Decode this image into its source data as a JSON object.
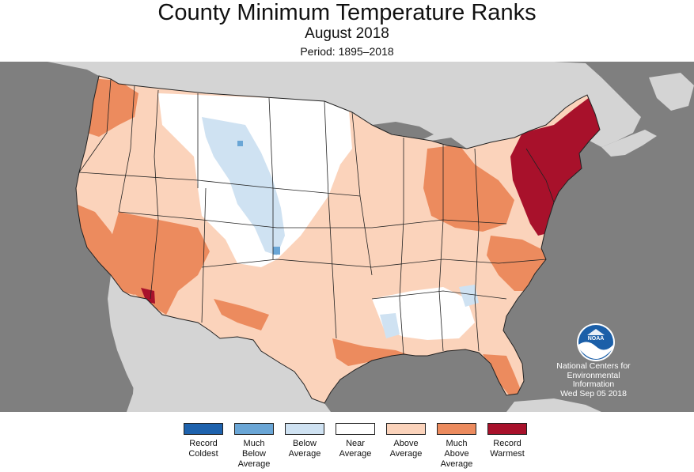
{
  "title": "County Minimum Temperature Ranks",
  "subtitle": "August 2018",
  "period": "Period: 1895–2018",
  "credit": {
    "line1": "National Centers for",
    "line2": "Environmental",
    "line3": "Information",
    "line4": "Wed Sep 05 2018"
  },
  "logo": {
    "icon": "noaa-logo-icon",
    "text": "NOAA"
  },
  "legend": [
    {
      "lines": [
        "Record",
        "Coldest"
      ],
      "color": "#1e62ad"
    },
    {
      "lines": [
        "Much",
        "Below",
        "Average"
      ],
      "color": "#6aa6d6"
    },
    {
      "lines": [
        "Below",
        "Average"
      ],
      "color": "#cfe2f2"
    },
    {
      "lines": [
        "Near",
        "Average"
      ],
      "color": "#ffffff"
    },
    {
      "lines": [
        "Above",
        "Average"
      ],
      "color": "#fbd3bb"
    },
    {
      "lines": [
        "Much",
        "Above",
        "Average"
      ],
      "color": "#ec8b5e"
    },
    {
      "lines": [
        "Record",
        "Warmest"
      ],
      "color": "#a8112b"
    }
  ],
  "colors": {
    "ocean": "#7f7f7f",
    "land": "#d4d4d4"
  }
}
